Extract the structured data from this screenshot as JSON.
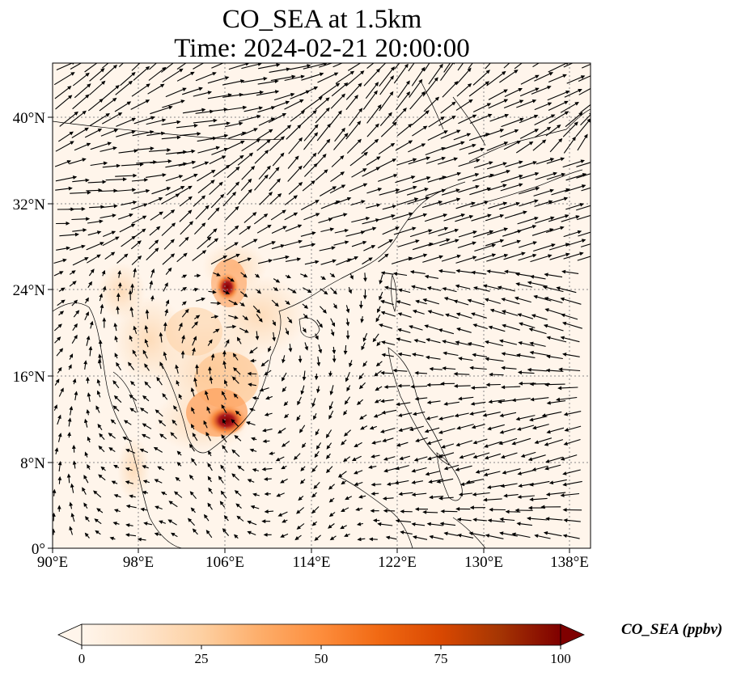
{
  "title": {
    "line1": "CO_SEA at 1.5km",
    "line2": "Time: 2024-02-21 20:00:00"
  },
  "map": {
    "lon_range": [
      90,
      140
    ],
    "lat_range": [
      0,
      45
    ],
    "gridlines": true,
    "x_ticks": [
      "90°E",
      "98°E",
      "106°E",
      "114°E",
      "122°E",
      "130°E",
      "138°E"
    ],
    "x_tick_values": [
      90,
      98,
      106,
      114,
      122,
      130,
      138
    ],
    "y_ticks": [
      "0°",
      "8°N",
      "16°N",
      "24°N",
      "32°N",
      "40°N"
    ],
    "y_tick_values": [
      0,
      8,
      16,
      24,
      32,
      40
    ],
    "background_color": "#fff5eb",
    "plume_colors": [
      "#fdd9b4",
      "#fdae6b",
      "#f16913",
      "#d94801",
      "#a50f15",
      "#7f0000"
    ]
  },
  "colorbar": {
    "label": "CO_SEA (ppbv)",
    "range": [
      0,
      100
    ],
    "ticks": [
      "0",
      "25",
      "50",
      "75",
      "100"
    ],
    "tick_values": [
      0,
      25,
      50,
      75,
      100
    ],
    "colormap": [
      "#fff5eb",
      "#fee6ce",
      "#fdd0a2",
      "#fdae6b",
      "#fd8d3c",
      "#f16913",
      "#d94801",
      "#a63603",
      "#7f0000"
    ]
  }
}
